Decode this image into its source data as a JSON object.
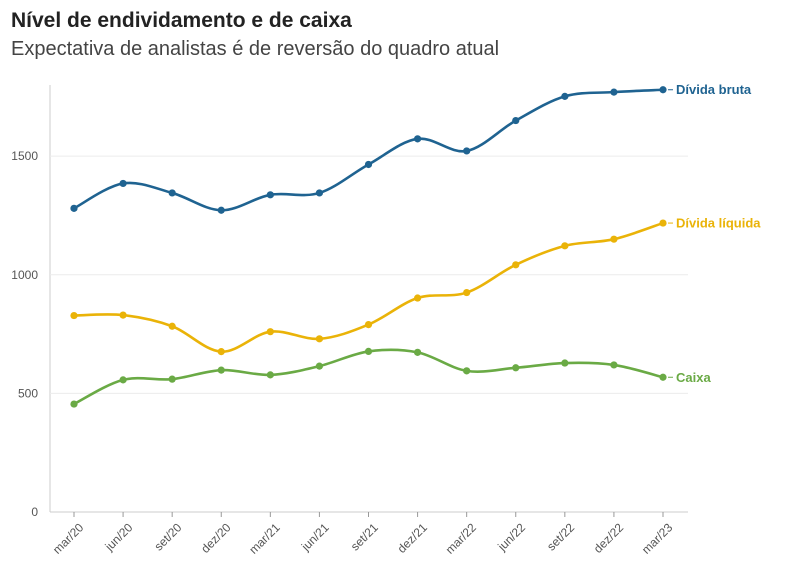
{
  "title": "Nível de endividamento e de caixa",
  "subtitle": "Expectativa de analistas é de reversão do quadro atual",
  "chart_data": {
    "type": "line",
    "categories": [
      "mar/20",
      "jun/20",
      "set/20",
      "dez/20",
      "mar/21",
      "jun/21",
      "set/21",
      "dez/21",
      "mar/22",
      "jun/22",
      "set/22",
      "dez/22",
      "mar/23"
    ],
    "series": [
      {
        "name": "Dívida bruta",
        "color": "#1f6391",
        "values": [
          1280,
          1385,
          1345,
          1272,
          1337,
          1345,
          1465,
          1573,
          1522,
          1650,
          1752,
          1770,
          1780
        ]
      },
      {
        "name": "Dívida líquida",
        "color": "#eab308",
        "values": [
          828,
          830,
          783,
          676,
          760,
          730,
          790,
          902,
          925,
          1042,
          1122,
          1150,
          1218
        ]
      },
      {
        "name": "Caixa",
        "color": "#6aaa45",
        "values": [
          455,
          557,
          560,
          598,
          578,
          615,
          677,
          673,
          595,
          608,
          628,
          620,
          568
        ]
      }
    ],
    "yticks": [
      0,
      500,
      1000,
      1500
    ],
    "ylim": [
      0,
      1800
    ],
    "grid": true,
    "legend": "inline-right"
  }
}
